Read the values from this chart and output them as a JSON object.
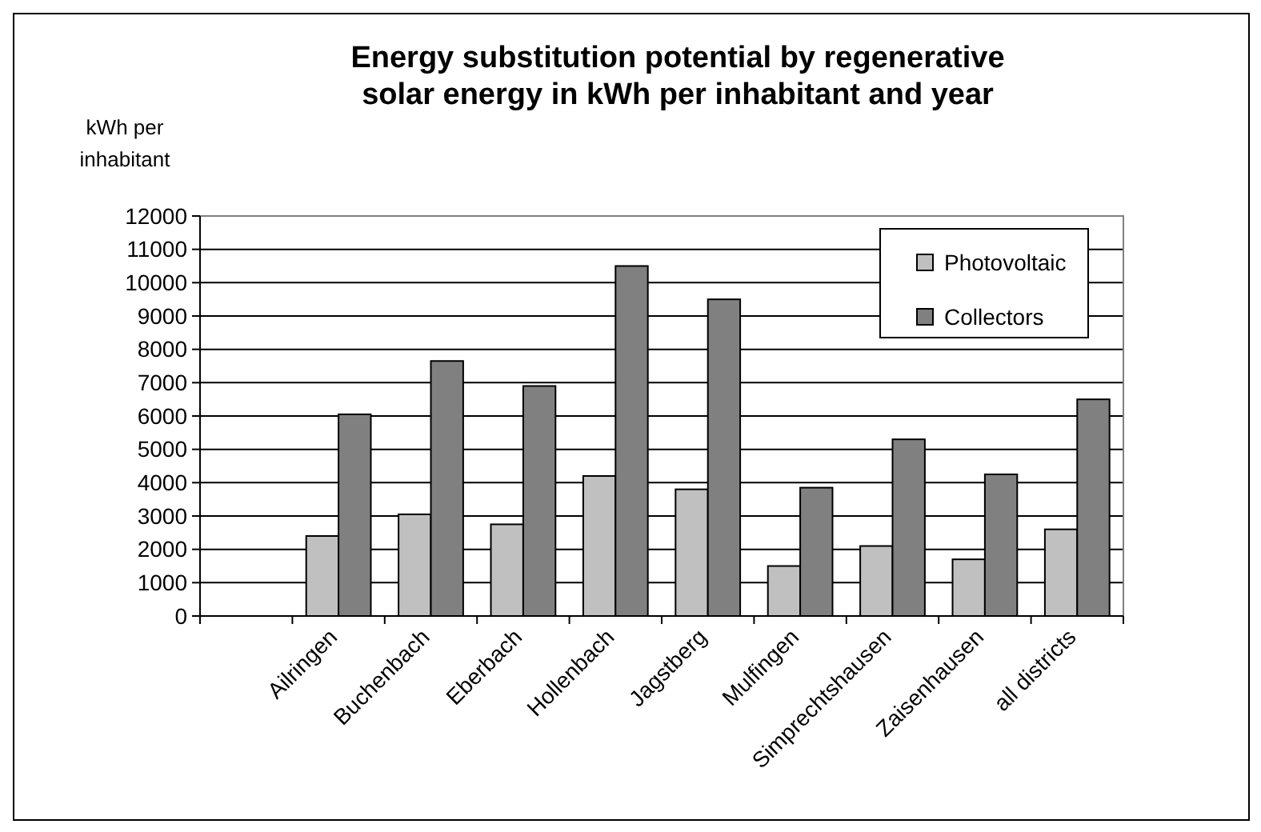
{
  "chart_data": {
    "type": "bar",
    "title": "Energy substitution potential by regenerative\nsolar energy in kWh per inhabitant and year",
    "ylabel": "kWh per\ninhabitant",
    "categories": [
      null,
      "Ailringen",
      "Buchenbach",
      "Eberbach",
      "Hollenbach",
      "Jagstberg",
      "Mulfingen",
      "Simprechtshausen",
      "Zaisenhausen",
      "all districts"
    ],
    "series": [
      {
        "name": "Photovoltaic",
        "color": "#c0c0c0",
        "values": [
          null,
          2400,
          3050,
          2750,
          4200,
          3800,
          1500,
          2100,
          1700,
          2600
        ]
      },
      {
        "name": "Collectors",
        "color": "#808080",
        "values": [
          null,
          6050,
          7650,
          6900,
          10500,
          9500,
          3850,
          5300,
          4250,
          6500
        ]
      }
    ],
    "ylim": [
      0,
      12000
    ],
    "yticks": [
      0,
      1000,
      2000,
      3000,
      4000,
      5000,
      6000,
      7000,
      8000,
      9000,
      10000,
      11000,
      12000
    ],
    "grid": "y",
    "legend": "top right"
  }
}
